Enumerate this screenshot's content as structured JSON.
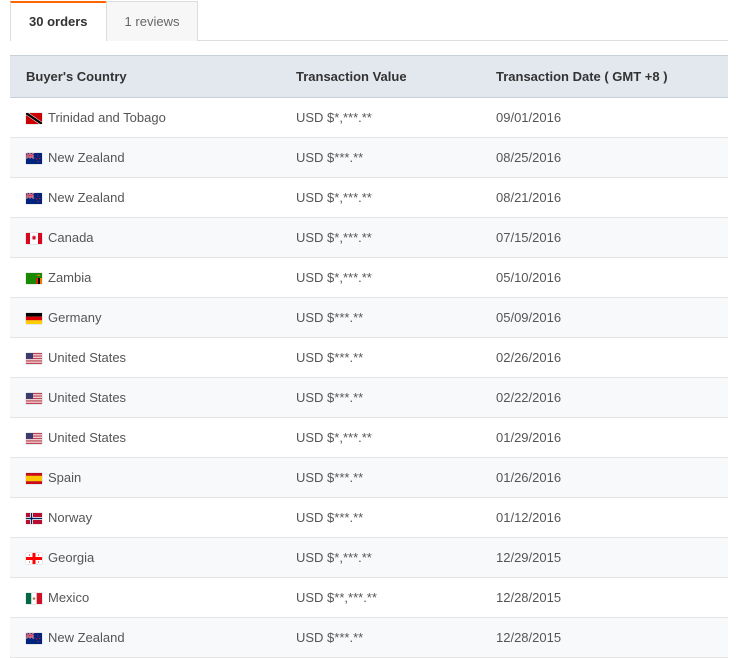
{
  "tabs": [
    {
      "label": "30 orders",
      "active": true
    },
    {
      "label": "1 reviews",
      "active": false
    }
  ],
  "columns": [
    "Buyer's Country",
    "Transaction Value",
    "Transaction Date ( GMT +8 )"
  ],
  "rows": [
    {
      "country": "Trinidad and Tobago",
      "flag": "tt",
      "value": "USD $*,***.**",
      "date": "09/01/2016"
    },
    {
      "country": "New Zealand",
      "flag": "nz",
      "value": "USD $***.**",
      "date": "08/25/2016"
    },
    {
      "country": "New Zealand",
      "flag": "nz",
      "value": "USD $*,***.**",
      "date": "08/21/2016"
    },
    {
      "country": "Canada",
      "flag": "ca",
      "value": "USD $*,***.**",
      "date": "07/15/2016"
    },
    {
      "country": "Zambia",
      "flag": "zm",
      "value": "USD $*,***.**",
      "date": "05/10/2016"
    },
    {
      "country": "Germany",
      "flag": "de",
      "value": "USD $***.**",
      "date": "05/09/2016"
    },
    {
      "country": "United States",
      "flag": "us",
      "value": "USD $***.**",
      "date": "02/26/2016"
    },
    {
      "country": "United States",
      "flag": "us",
      "value": "USD $***.**",
      "date": "02/22/2016"
    },
    {
      "country": "United States",
      "flag": "us",
      "value": "USD $*,***.**",
      "date": "01/29/2016"
    },
    {
      "country": "Spain",
      "flag": "es",
      "value": "USD $***.**",
      "date": "01/26/2016"
    },
    {
      "country": "Norway",
      "flag": "no",
      "value": "USD $***.**",
      "date": "01/12/2016"
    },
    {
      "country": "Georgia",
      "flag": "ge",
      "value": "USD $*,***.**",
      "date": "12/29/2015"
    },
    {
      "country": "Mexico",
      "flag": "mx",
      "value": "USD $**,***.**",
      "date": "12/28/2015"
    },
    {
      "country": "New Zealand",
      "flag": "nz",
      "value": "USD $***.**",
      "date": "12/28/2015"
    }
  ],
  "flag_svgs": {
    "tt": "<rect width='16' height='11' fill='#c00'/><polygon points='0,0 3,0 16,9 16,11 13,11 0,2' fill='#fff'/><polygon points='0,0 2,0 16,9.5 16,11 14,11 0,1.5' fill='#000'/>",
    "nz": "<rect width='16' height='11' fill='#00247d'/><rect width='8' height='5.5' fill='#00247d'/><path d='M0,0 L8,5.5 M8,0 L0,5.5' stroke='#fff' stroke-width='1.2'/><path d='M0,0 L8,5.5 M8,0 L0,5.5' stroke='#c8102e' stroke-width='0.6'/><path d='M4,0 V5.5 M0,2.75 H8' stroke='#fff' stroke-width='1.6'/><path d='M4,0 V5.5 M0,2.75 H8' stroke='#c8102e' stroke-width='0.9'/><circle cx='12' cy='3' r='0.7' fill='#c8102e'/><circle cx='13.5' cy='5.5' r='0.7' fill='#c8102e'/><circle cx='10.5' cy='6' r='0.7' fill='#c8102e'/><circle cx='12' cy='8.5' r='0.8' fill='#c8102e'/>",
    "ca": "<rect width='16' height='11' fill='#fff'/><rect width='4' height='11' fill='#d80621'/><rect x='12' width='4' height='11' fill='#d80621'/><path d='M8,2 L8.6,3.5 L9.8,3 L9.3,4.6 L10.5,5 L9,5.8 L9.5,7 L8,6.3 L6.5,7 L7,5.8 L5.5,5 L6.7,4.6 L6.2,3 L7.4,3.5 Z' fill='#d80621'/>",
    "zm": "<rect width='16' height='11' fill='#198a00'/><rect x='10' y='5' width='2' height='6' fill='#de2010'/><rect x='12' y='5' width='2' height='6' fill='#000'/><rect x='14' y='5' width='2' height='6' fill='#ef7d00'/><path d='M12,2 L13.5,1.5 L14.5,2.5 L13,3 L11.5,3 L10.5,2.5 Z' fill='#ef7d00'/>",
    "de": "<rect width='16' height='3.67' fill='#000'/><rect y='3.67' width='16' height='3.67' fill='#d00'/><rect y='7.33' width='16' height='3.67' fill='#ffce00'/>",
    "us": "<rect width='16' height='11' fill='#b22234'/><rect y='0.85' width='16' height='0.85' fill='#fff'/><rect y='2.54' width='16' height='0.85' fill='#fff'/><rect y='4.23' width='16' height='0.85' fill='#fff'/><rect y='5.92' width='16' height='0.85' fill='#fff'/><rect y='7.62' width='16' height='0.85' fill='#fff'/><rect y='9.31' width='16' height='0.85' fill='#fff'/><rect width='7' height='5.92' fill='#3c3b6e'/>",
    "es": "<rect width='16' height='11' fill='#c60b1e'/><rect y='2.75' width='16' height='5.5' fill='#ffc400'/>",
    "no": "<rect width='16' height='11' fill='#ba0c2f'/><rect x='4' width='3' height='11' fill='#fff'/><rect y='4' width='16' height='3' fill='#fff'/><rect x='4.8' width='1.4' height='11' fill='#00205b'/><rect y='4.8' width='16' height='1.4' fill='#00205b'/>",
    "ge": "<rect width='16' height='11' fill='#fff'/><rect x='6.5' width='3' height='11' fill='#f00'/><rect y='4' width='16' height='3' fill='#f00'/><path d='M3,1.5 h1 v1 h-1z M3,8.5 h1 v1 h-1z M12,1.5 h1 v1 h-1z M12,8.5 h1 v1 h-1z' fill='#f00'/>",
    "mx": "<rect width='5.33' height='11' fill='#006847'/><rect x='5.33' width='5.33' height='11' fill='#fff'/><rect x='10.67' width='5.33' height='11' fill='#ce1126'/><circle cx='8' cy='5.5' r='1.3' fill='#a67c52'/>"
  }
}
